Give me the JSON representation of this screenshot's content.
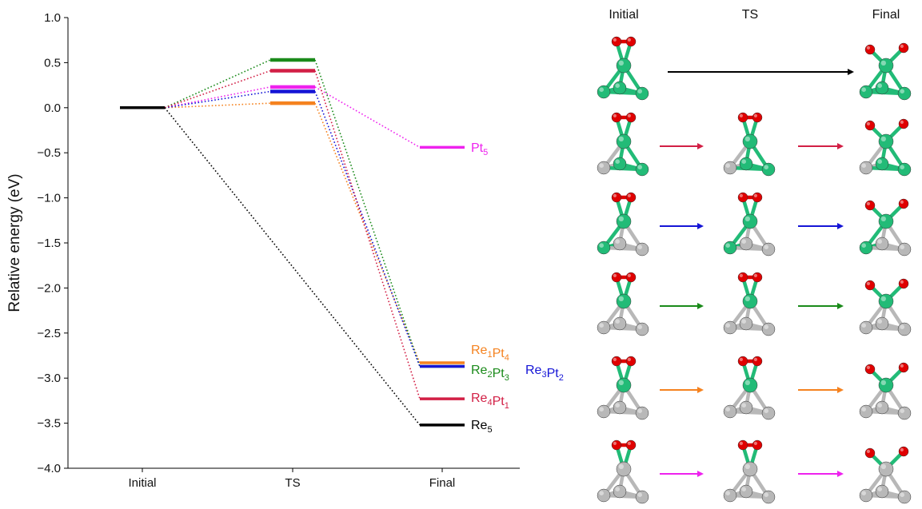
{
  "chart_data": {
    "type": "line",
    "ylabel": "Relative energy (eV)",
    "categories": [
      "Initial",
      "TS",
      "Final"
    ],
    "ylim": [
      -4.0,
      1.0
    ],
    "yticks": [
      "1.0",
      "0.5",
      "0.0",
      "−0.5",
      "−1.0",
      "−1.5",
      "−2.0",
      "−2.5",
      "−3.0",
      "−3.5",
      "−4.0"
    ],
    "ytick_values": [
      1.0,
      0.5,
      0.0,
      -0.5,
      -1.0,
      -1.5,
      -2.0,
      -2.5,
      -3.0,
      -3.5,
      -4.0
    ],
    "grid": false,
    "series": [
      {
        "label_base": [
          "Pt"
        ],
        "label_sub": [
          "5"
        ],
        "color": "#ee22ee",
        "initial": 0.0,
        "ts": 0.23,
        "final": -0.44
      },
      {
        "label_base": [
          "Re",
          "Pt"
        ],
        "label_sub": [
          "1",
          "4"
        ],
        "color": "#f5821f",
        "initial": 0.0,
        "ts": 0.05,
        "final": -2.83
      },
      {
        "label_base": [
          "Re",
          "Pt"
        ],
        "label_sub": [
          "2",
          "3"
        ],
        "color": "#1a8a1a",
        "initial": 0.0,
        "ts": 0.53,
        "final": -2.87
      },
      {
        "label_base": [
          "Re",
          "Pt"
        ],
        "label_sub": [
          "3",
          "2"
        ],
        "color": "#1515d6",
        "initial": 0.0,
        "ts": 0.18,
        "final": -2.87
      },
      {
        "label_base": [
          "Re",
          "Pt"
        ],
        "label_sub": [
          "4",
          "1"
        ],
        "color": "#d21f45",
        "initial": 0.0,
        "ts": 0.41,
        "final": -3.23
      },
      {
        "label_base": [
          "Re"
        ],
        "label_sub": [
          "5"
        ],
        "color": "#000000",
        "initial": 0.0,
        "ts": null,
        "final": -3.52
      }
    ]
  },
  "panel": {
    "headers": [
      "Initial",
      "TS",
      "Final"
    ],
    "arrow_colors": [
      "#000000",
      "#d21f45",
      "#1515d6",
      "#1a8a1a",
      "#f5821f",
      "#ee22ee"
    ],
    "atom_colors": {
      "pt": "#22bb77",
      "re": "#b8b8b8",
      "o": "#e00000"
    }
  }
}
